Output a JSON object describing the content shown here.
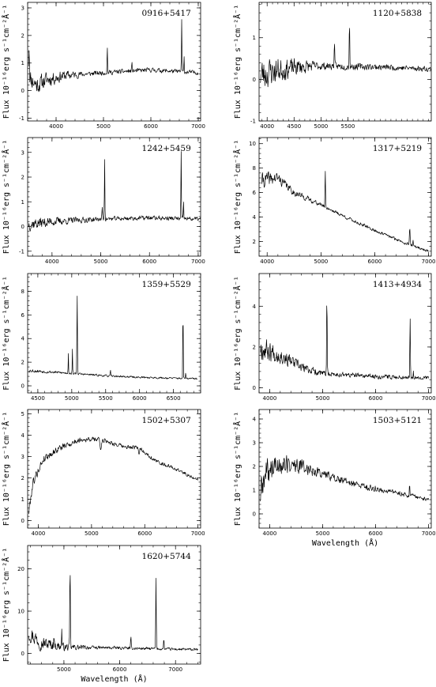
{
  "figure": {
    "ylabel_prefix": "Flux",
    "ylabel_units": "10⁻¹⁶erg s⁻¹cm⁻²Å⁻¹",
    "xlabel": "Wavelength (Å)"
  },
  "chart_data": [
    {
      "type": "line",
      "title": "0916+5417",
      "xlim": [
        3400,
        7050
      ],
      "ylim": [
        -1.1,
        3.2
      ],
      "xticks": [
        4000,
        5000,
        6000,
        7000
      ],
      "yticks": [
        -1,
        0,
        1,
        2,
        3
      ],
      "ylabel": "Flux 10⁻¹⁶erg s⁻¹cm⁻²Å⁻¹",
      "xlabel": "",
      "continuum": [
        [
          3420,
          0.5
        ],
        [
          3600,
          0.2
        ],
        [
          3800,
          0.4
        ],
        [
          4200,
          0.55
        ],
        [
          5000,
          0.65
        ],
        [
          6000,
          0.75
        ],
        [
          7000,
          0.65
        ]
      ],
      "noise": [
        [
          3420,
          0.5
        ],
        [
          4000,
          0.3
        ],
        [
          4600,
          0.12
        ],
        [
          7000,
          0.1
        ]
      ],
      "lines": [
        [
          3430,
          1.2,
          8
        ],
        [
          5080,
          0.95,
          5
        ],
        [
          5600,
          0.25,
          6
        ],
        [
          6650,
          1.9,
          5
        ],
        [
          6700,
          0.6,
          4
        ]
      ],
      "seed": 11
    },
    {
      "type": "line",
      "title": "1120+5838",
      "xlim": [
        3850,
        7050
      ],
      "ylim": [
        -1.0,
        1.85
      ],
      "xticks": [
        4000,
        4500,
        5000,
        5500
      ],
      "xtick_labels_shown": [
        4000,
        4500,
        5000,
        5500
      ],
      "yticks": [
        -1,
        0,
        1
      ],
      "ylabel": "Flux 10⁻¹⁶erg s⁻¹cm⁻²Å⁻¹",
      "xlabel": "",
      "continuum": [
        [
          3870,
          0.1
        ],
        [
          4100,
          0.2
        ],
        [
          4600,
          0.3
        ],
        [
          5000,
          0.32
        ],
        [
          6000,
          0.3
        ],
        [
          7050,
          0.25
        ]
      ],
      "noise": [
        [
          3870,
          0.55
        ],
        [
          4300,
          0.35
        ],
        [
          5000,
          0.12
        ],
        [
          7050,
          0.08
        ]
      ],
      "lines": [
        [
          5250,
          0.6,
          5
        ],
        [
          5530,
          1.15,
          5
        ]
      ],
      "seed": 23
    },
    {
      "type": "line",
      "title": "1242+5459",
      "xlim": [
        3500,
        7050
      ],
      "ylim": [
        -1.2,
        3.6
      ],
      "xticks": [
        4000,
        5000,
        6000,
        7000
      ],
      "yticks": [
        -1,
        0,
        1,
        2,
        3
      ],
      "ylabel": "Flux 10⁻¹⁶erg s⁻¹cm⁻²Å⁻¹",
      "xlabel": "",
      "continuum": [
        [
          3520,
          0.1
        ],
        [
          4000,
          0.2
        ],
        [
          5000,
          0.3
        ],
        [
          6000,
          0.35
        ],
        [
          7050,
          0.3
        ]
      ],
      "noise": [
        [
          3520,
          0.35
        ],
        [
          4200,
          0.2
        ],
        [
          5000,
          0.12
        ],
        [
          7050,
          0.12
        ]
      ],
      "lines": [
        [
          5030,
          0.5,
          5
        ],
        [
          5080,
          2.5,
          5
        ],
        [
          6650,
          2.7,
          5
        ],
        [
          6700,
          0.6,
          4
        ]
      ],
      "seed": 37
    },
    {
      "type": "line",
      "title": "1317+5219",
      "xlim": [
        3850,
        7050
      ],
      "ylim": [
        0.8,
        10.5
      ],
      "xticks": [
        4000,
        5000,
        6000,
        7000
      ],
      "yticks": [
        2,
        4,
        6,
        8,
        10
      ],
      "ylabel": "Flux 10⁻¹⁶erg s⁻¹cm⁻²Å⁻¹",
      "xlabel": "",
      "continuum": [
        [
          3900,
          7.0
        ],
        [
          4200,
          7.2
        ],
        [
          4500,
          6.0
        ],
        [
          5000,
          5.0
        ],
        [
          5500,
          3.9
        ],
        [
          6000,
          2.9
        ],
        [
          6500,
          2.0
        ],
        [
          7000,
          1.2
        ]
      ],
      "noise": [
        [
          3900,
          0.9
        ],
        [
          4400,
          0.4
        ],
        [
          5000,
          0.2
        ],
        [
          7000,
          0.15
        ]
      ],
      "lines": [
        [
          5080,
          3.0,
          5
        ],
        [
          6650,
          1.3,
          6
        ],
        [
          6710,
          0.4,
          4
        ]
      ],
      "seed": 41
    },
    {
      "type": "line",
      "title": "1359+5529",
      "xlim": [
        4350,
        6900
      ],
      "ylim": [
        -0.6,
        9.5
      ],
      "xticks": [
        4500,
        5000,
        5500,
        6000,
        6500
      ],
      "yticks": [
        0,
        2,
        4,
        6,
        8
      ],
      "ylabel": "Flux 10⁻¹⁶erg s⁻¹cm⁻²Å⁻¹",
      "xlabel": "",
      "continuum": [
        [
          4360,
          1.3
        ],
        [
          5000,
          1.05
        ],
        [
          5500,
          0.85
        ],
        [
          6000,
          0.72
        ],
        [
          6850,
          0.6
        ]
      ],
      "noise": [
        [
          4360,
          0.2
        ],
        [
          5000,
          0.12
        ],
        [
          6850,
          0.1
        ]
      ],
      "lines": [
        [
          4950,
          1.8,
          3
        ],
        [
          5010,
          2.0,
          3
        ],
        [
          5080,
          6.8,
          4
        ],
        [
          5570,
          0.5,
          3
        ],
        [
          6640,
          7.2,
          3
        ],
        [
          6680,
          0.5,
          3
        ]
      ],
      "seed": 53
    },
    {
      "type": "line",
      "title": "1413+4934",
      "xlim": [
        3800,
        7050
      ],
      "ylim": [
        -0.25,
        5.6
      ],
      "xticks": [
        4000,
        5000,
        6000,
        7000
      ],
      "yticks": [
        0,
        2,
        4
      ],
      "ylabel": "Flux 10⁻¹⁶erg s⁻¹cm⁻²Å⁻¹",
      "xlabel": "",
      "continuum": [
        [
          3820,
          2.0
        ],
        [
          4200,
          1.6
        ],
        [
          4600,
          1.0
        ],
        [
          5000,
          0.7
        ],
        [
          6000,
          0.55
        ],
        [
          7000,
          0.5
        ]
      ],
      "noise": [
        [
          3820,
          0.8
        ],
        [
          4300,
          0.45
        ],
        [
          5000,
          0.18
        ],
        [
          7000,
          0.12
        ]
      ],
      "lines": [
        [
          5080,
          3.9,
          5
        ],
        [
          6650,
          3.0,
          5
        ],
        [
          6710,
          0.4,
          4
        ]
      ],
      "seed": 67
    },
    {
      "type": "line",
      "title": "1502+5307",
      "xlim": [
        3800,
        7050
      ],
      "ylim": [
        -0.35,
        5.2
      ],
      "xticks": [
        4000,
        5000,
        6000,
        7000
      ],
      "yticks": [
        0,
        1,
        2,
        3,
        4,
        5
      ],
      "ylabel": "Flux 10⁻¹⁶erg s⁻¹cm⁻²Å⁻¹",
      "xlabel": "",
      "continuum": [
        [
          3820,
          0.4
        ],
        [
          3900,
          1.8
        ],
        [
          4100,
          2.9
        ],
        [
          4400,
          3.4
        ],
        [
          4800,
          3.8
        ],
        [
          5200,
          3.8
        ],
        [
          5600,
          3.45
        ],
        [
          5900,
          3.4
        ],
        [
          6200,
          2.8
        ],
        [
          6600,
          2.4
        ],
        [
          7000,
          1.9
        ]
      ],
      "noise": [
        [
          3820,
          0.3
        ],
        [
          4200,
          0.22
        ],
        [
          5000,
          0.15
        ],
        [
          7000,
          0.1
        ]
      ],
      "lines": [
        [
          5175,
          -0.5,
          12
        ],
        [
          5890,
          -0.3,
          10
        ]
      ],
      "seed": 79
    },
    {
      "type": "line",
      "title": "1503+5121",
      "xlim": [
        3800,
        7050
      ],
      "ylim": [
        -0.6,
        4.4
      ],
      "xticks": [
        4000,
        5000,
        6000,
        7000
      ],
      "yticks": [
        0,
        1,
        2,
        3,
        4
      ],
      "ylabel": "Flux 10⁻¹⁶erg s⁻¹cm⁻²Å⁻¹",
      "xlabel": "Wavelength (Å)",
      "continuum": [
        [
          3820,
          0.8
        ],
        [
          3950,
          1.8
        ],
        [
          4200,
          2.1
        ],
        [
          4600,
          2.0
        ],
        [
          5000,
          1.7
        ],
        [
          5500,
          1.3
        ],
        [
          6000,
          1.05
        ],
        [
          6500,
          0.85
        ],
        [
          7000,
          0.6
        ]
      ],
      "noise": [
        [
          3820,
          0.9
        ],
        [
          4200,
          0.6
        ],
        [
          5000,
          0.25
        ],
        [
          7000,
          0.1
        ]
      ],
      "lines": [
        [
          6640,
          0.6,
          4
        ]
      ],
      "seed": 89
    },
    {
      "type": "line",
      "title": "1620+5744",
      "xlim": [
        4350,
        7450
      ],
      "ylim": [
        -2.5,
        25.5
      ],
      "xticks": [
        5000,
        6000,
        7000
      ],
      "yticks": [
        0,
        10,
        20
      ],
      "ylabel": "Flux 10⁻¹⁶erg s⁻¹cm⁻²Å⁻¹",
      "xlabel": "Wavelength (Å)",
      "continuum": [
        [
          4370,
          5.0
        ],
        [
          4600,
          2.5
        ],
        [
          5000,
          1.5
        ],
        [
          5500,
          1.4
        ],
        [
          6000,
          1.3
        ],
        [
          7000,
          1.0
        ],
        [
          7400,
          0.9
        ]
      ],
      "noise": [
        [
          4370,
          2.8
        ],
        [
          5000,
          1.2
        ],
        [
          5500,
          0.5
        ],
        [
          7400,
          0.4
        ]
      ],
      "lines": [
        [
          4820,
          3.5,
          4
        ],
        [
          4960,
          4.5,
          4
        ],
        [
          5110,
          20.0,
          5
        ],
        [
          6200,
          2.5,
          5
        ],
        [
          6650,
          16.5,
          5
        ],
        [
          6790,
          3.0,
          4
        ]
      ],
      "seed": 97
    }
  ]
}
